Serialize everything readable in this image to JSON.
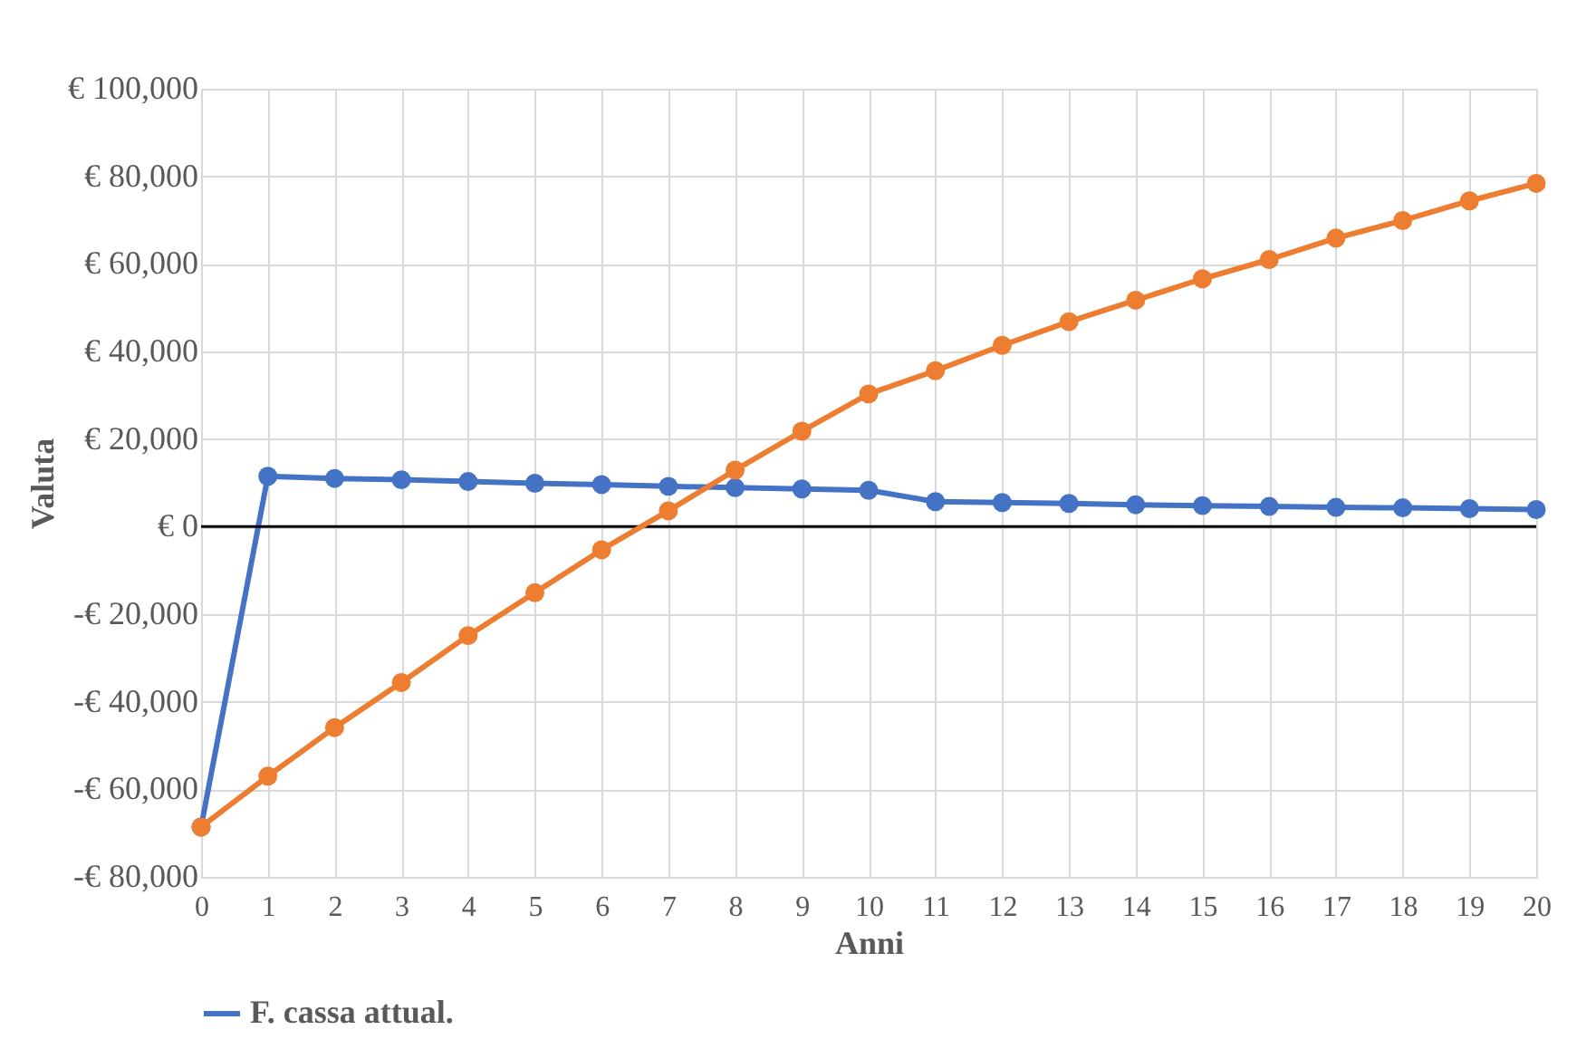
{
  "chart_data": {
    "type": "line",
    "xlabel": "Anni",
    "ylabel": "Valuta",
    "x": [
      0,
      1,
      2,
      3,
      4,
      5,
      6,
      7,
      8,
      9,
      10,
      11,
      12,
      13,
      14,
      15,
      16,
      17,
      18,
      19,
      20
    ],
    "series": [
      {
        "name": "F. cassa attual.",
        "color": "#4472c4",
        "values": [
          -68600,
          11500,
          11000,
          10700,
          10300,
          9900,
          9600,
          9200,
          8900,
          8600,
          8300,
          5700,
          5500,
          5300,
          5000,
          4800,
          4600,
          4400,
          4300,
          4100,
          3900
        ]
      },
      {
        "color": "#ed7d31",
        "values": [
          -68600,
          -57000,
          -45900,
          -35600,
          -24900,
          -15100,
          -5300,
          3600,
          12900,
          21800,
          30300,
          35600,
          41400,
          46800,
          51700,
          56600,
          61000,
          65900,
          69900,
          74400,
          78400
        ]
      }
    ],
    "xlim": [
      0,
      20
    ],
    "xticks": [
      0,
      1,
      2,
      3,
      4,
      5,
      6,
      7,
      8,
      9,
      10,
      11,
      12,
      13,
      14,
      15,
      16,
      17,
      18,
      19,
      20
    ],
    "ylim": [
      -80000,
      100000
    ],
    "yticks": [
      {
        "value": -80000,
        "label": "-€ 80,000"
      },
      {
        "value": -60000,
        "label": "-€ 60,000"
      },
      {
        "value": -40000,
        "label": "-€ 40,000"
      },
      {
        "value": -20000,
        "label": "-€ 20,000"
      },
      {
        "value": 0,
        "label": "€ 0"
      },
      {
        "value": 20000,
        "label": "€ 20,000"
      },
      {
        "value": 40000,
        "label": "€ 40,000"
      },
      {
        "value": 60000,
        "label": "€ 60,000"
      },
      {
        "value": 80000,
        "label": "€ 80,000"
      },
      {
        "value": 100000,
        "label": "€ 100,000"
      }
    ],
    "ref_lines": [
      {
        "axis": "y",
        "value": 0,
        "color": "#000000"
      }
    ],
    "grid": true,
    "legend": "bottom",
    "marker": "circle",
    "line_style": "solid"
  }
}
